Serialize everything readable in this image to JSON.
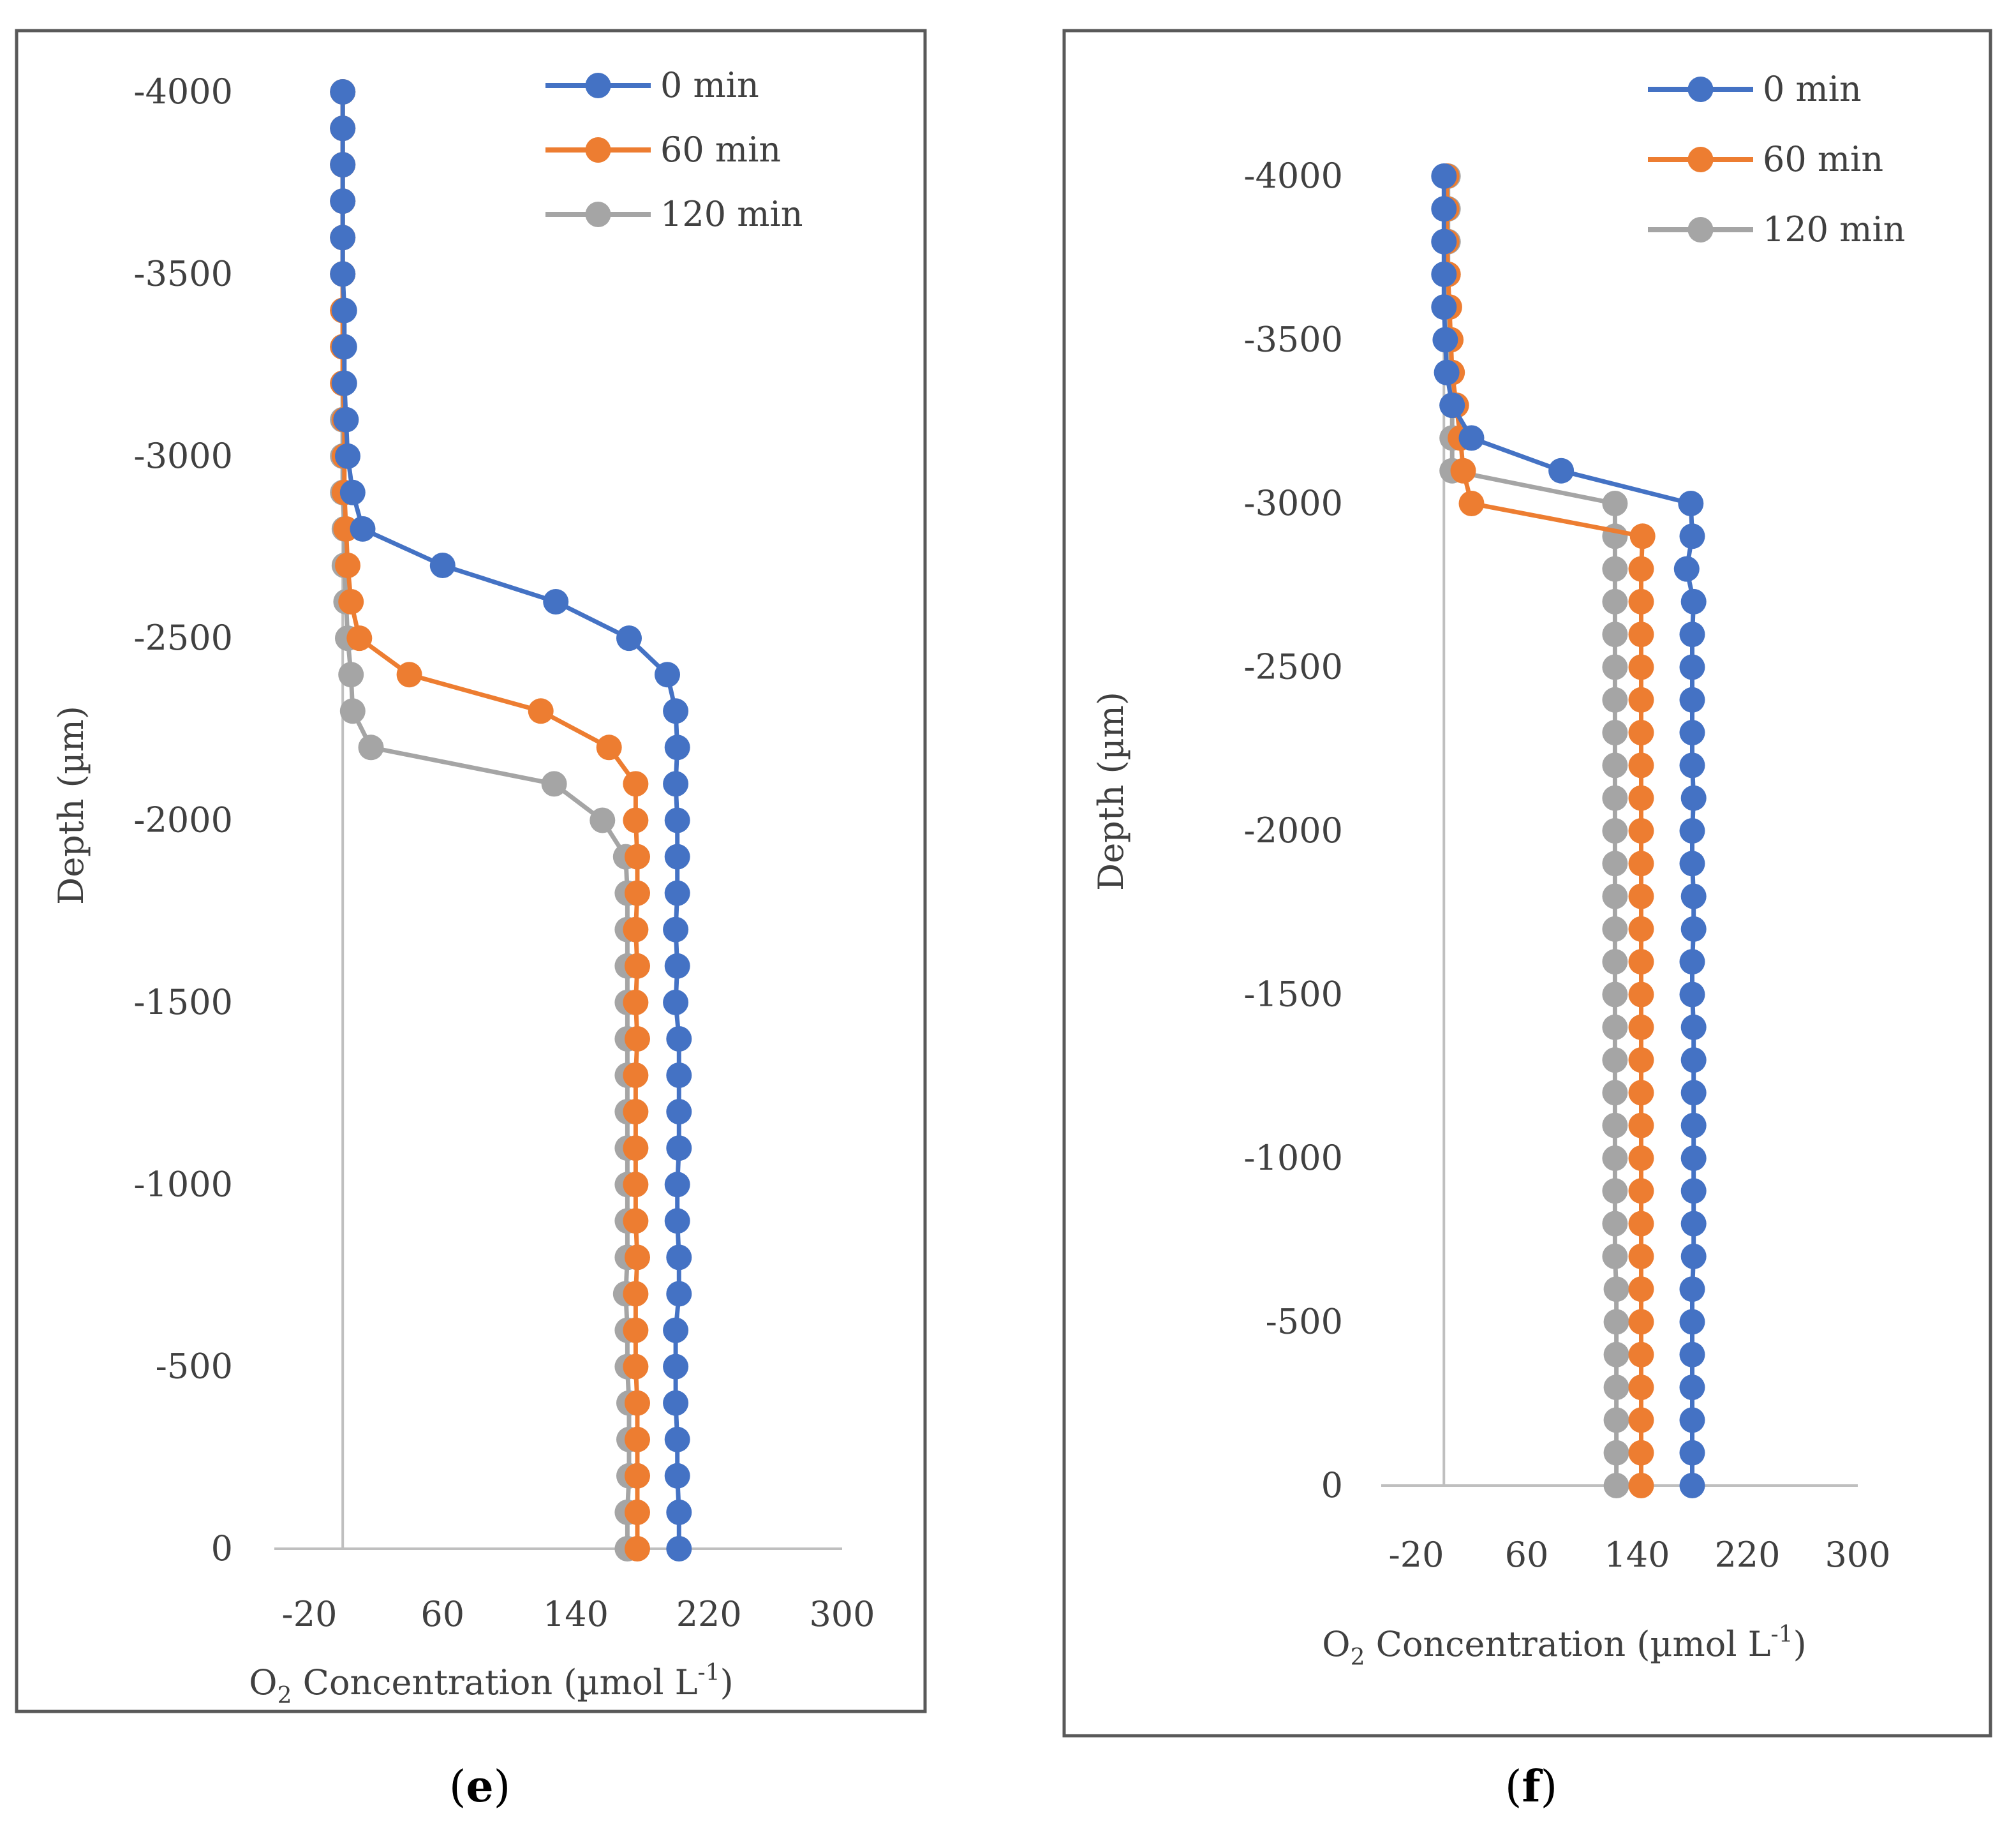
{
  "colors": {
    "s0": "#4472C4",
    "s60": "#ED7D31",
    "s120": "#A5A5A5",
    "axis": "#BFBFBF",
    "frame": "#595959",
    "text": "#404040"
  },
  "panels": [
    {
      "caption_open": "(",
      "caption_letter": "e",
      "caption_close": ")"
    },
    {
      "caption_open": "(",
      "caption_letter": "f",
      "caption_close": ")"
    }
  ],
  "chart_data": [
    {
      "type": "scatter",
      "mode": "lines+markers",
      "panel": "e",
      "title": "",
      "xlabel": "O2 Concentration (µmol L-1)",
      "xlabel_parts": {
        "o": "O",
        "sub": "2",
        "mid": " Concentration (µmol L",
        "sup": "-1",
        "end": ")"
      },
      "ylabel": "Depth (µm)",
      "xlim": [
        -20,
        300
      ],
      "xticks": [
        -20,
        60,
        140,
        220,
        300
      ],
      "ylim": [
        0,
        -4000
      ],
      "yticks": [
        -4000,
        -3500,
        -3000,
        -2500,
        -2000,
        -1500,
        -1000,
        -500,
        0
      ],
      "grid": false,
      "legend": "top-right",
      "series": [
        {
          "name": "0 min",
          "color": "#4472C4",
          "points": [
            [
              0,
              -4000
            ],
            [
              0,
              -3900
            ],
            [
              0,
              -3800
            ],
            [
              0,
              -3700
            ],
            [
              0,
              -3600
            ],
            [
              0,
              -3500
            ],
            [
              1,
              -3400
            ],
            [
              1,
              -3300
            ],
            [
              1,
              -3200
            ],
            [
              2,
              -3100
            ],
            [
              3,
              -3000
            ],
            [
              6,
              -2900
            ],
            [
              12,
              -2800
            ],
            [
              60,
              -2700
            ],
            [
              128,
              -2600
            ],
            [
              172,
              -2500
            ],
            [
              195,
              -2400
            ],
            [
              200,
              -2300
            ],
            [
              201,
              -2200
            ],
            [
              200,
              -2100
            ],
            [
              201,
              -2000
            ],
            [
              201,
              -1900
            ],
            [
              201,
              -1800
            ],
            [
              200,
              -1700
            ],
            [
              201,
              -1600
            ],
            [
              200,
              -1500
            ],
            [
              202,
              -1400
            ],
            [
              202,
              -1300
            ],
            [
              202,
              -1200
            ],
            [
              202,
              -1100
            ],
            [
              201,
              -1000
            ],
            [
              201,
              -900
            ],
            [
              202,
              -800
            ],
            [
              202,
              -700
            ],
            [
              200,
              -600
            ],
            [
              200,
              -500
            ],
            [
              200,
              -400
            ],
            [
              201,
              -300
            ],
            [
              201,
              -200
            ],
            [
              202,
              -100
            ],
            [
              202,
              0
            ]
          ]
        },
        {
          "name": "60 min",
          "color": "#ED7D31",
          "points": [
            [
              0,
              -4000
            ],
            [
              0,
              -3900
            ],
            [
              0,
              -3800
            ],
            [
              0,
              -3700
            ],
            [
              0,
              -3600
            ],
            [
              0,
              -3500
            ],
            [
              0,
              -3400
            ],
            [
              0,
              -3300
            ],
            [
              0,
              -3200
            ],
            [
              1,
              -3100
            ],
            [
              1,
              -3000
            ],
            [
              1,
              -2900
            ],
            [
              2,
              -2800
            ],
            [
              3,
              -2700
            ],
            [
              5,
              -2600
            ],
            [
              10,
              -2500
            ],
            [
              40,
              -2400
            ],
            [
              119,
              -2300
            ],
            [
              160,
              -2200
            ],
            [
              176,
              -2100
            ],
            [
              176,
              -2000
            ],
            [
              177,
              -1900
            ],
            [
              177,
              -1800
            ],
            [
              176,
              -1700
            ],
            [
              177,
              -1600
            ],
            [
              176,
              -1500
            ],
            [
              177,
              -1400
            ],
            [
              176,
              -1300
            ],
            [
              176,
              -1200
            ],
            [
              176,
              -1100
            ],
            [
              176,
              -1000
            ],
            [
              176,
              -900
            ],
            [
              177,
              -800
            ],
            [
              176,
              -700
            ],
            [
              176,
              -600
            ],
            [
              176,
              -500
            ],
            [
              177,
              -400
            ],
            [
              177,
              -300
            ],
            [
              177,
              -200
            ],
            [
              177,
              -100
            ],
            [
              177,
              0
            ]
          ]
        },
        {
          "name": "120 min",
          "color": "#A5A5A5",
          "points": [
            [
              0,
              -4000
            ],
            [
              0,
              -3900
            ],
            [
              0,
              -3800
            ],
            [
              0,
              -3700
            ],
            [
              0,
              -3600
            ],
            [
              0,
              -3500
            ],
            [
              0,
              -3400
            ],
            [
              0,
              -3300
            ],
            [
              0,
              -3200
            ],
            [
              0,
              -3100
            ],
            [
              0,
              -3000
            ],
            [
              0,
              -2900
            ],
            [
              1,
              -2800
            ],
            [
              1,
              -2700
            ],
            [
              2,
              -2600
            ],
            [
              3,
              -2500
            ],
            [
              5,
              -2400
            ],
            [
              6,
              -2300
            ],
            [
              17,
              -2200
            ],
            [
              127,
              -2100
            ],
            [
              156,
              -2000
            ],
            [
              170,
              -1900
            ],
            [
              171,
              -1800
            ],
            [
              171,
              -1700
            ],
            [
              171,
              -1600
            ],
            [
              171,
              -1500
            ],
            [
              171,
              -1400
            ],
            [
              171,
              -1300
            ],
            [
              171,
              -1200
            ],
            [
              171,
              -1100
            ],
            [
              171,
              -1000
            ],
            [
              171,
              -900
            ],
            [
              171,
              -800
            ],
            [
              170,
              -700
            ],
            [
              171,
              -600
            ],
            [
              171,
              -500
            ],
            [
              172,
              -400
            ],
            [
              172,
              -300
            ],
            [
              172,
              -200
            ],
            [
              171,
              -100
            ],
            [
              171,
              0
            ]
          ]
        }
      ]
    },
    {
      "type": "scatter",
      "mode": "lines+markers",
      "panel": "f",
      "title": "",
      "xlabel": "O2 Concentration (µmol L-1)",
      "xlabel_parts": {
        "o": "O",
        "sub": "2",
        "mid": " Concentration (µmol L",
        "sup": "-1",
        "end": ")"
      },
      "ylabel": "Depth (µm)",
      "xlim": [
        -20,
        300
      ],
      "xticks": [
        -20,
        60,
        140,
        220,
        300
      ],
      "ylim": [
        0,
        -4000
      ],
      "yticks": [
        -4000,
        -3500,
        -3000,
        -2500,
        -2000,
        -1500,
        -1000,
        -500,
        0
      ],
      "grid": false,
      "legend": "top-right",
      "series": [
        {
          "name": "0 min",
          "color": "#4472C4",
          "points": [
            [
              0,
              -4000
            ],
            [
              0,
              -3900
            ],
            [
              0,
              -3800
            ],
            [
              0,
              -3700
            ],
            [
              0,
              -3600
            ],
            [
              1,
              -3500
            ],
            [
              2,
              -3400
            ],
            [
              6,
              -3300
            ],
            [
              20,
              -3200
            ],
            [
              85,
              -3100
            ],
            [
              179,
              -3000
            ],
            [
              180,
              -2900
            ],
            [
              176,
              -2800
            ],
            [
              181,
              -2700
            ],
            [
              180,
              -2600
            ],
            [
              180,
              -2500
            ],
            [
              180,
              -2400
            ],
            [
              180,
              -2300
            ],
            [
              180,
              -2200
            ],
            [
              181,
              -2100
            ],
            [
              180,
              -2000
            ],
            [
              180,
              -1900
            ],
            [
              181,
              -1800
            ],
            [
              181,
              -1700
            ],
            [
              180,
              -1600
            ],
            [
              180,
              -1500
            ],
            [
              181,
              -1400
            ],
            [
              181,
              -1300
            ],
            [
              181,
              -1200
            ],
            [
              181,
              -1100
            ],
            [
              181,
              -1000
            ],
            [
              181,
              -900
            ],
            [
              181,
              -800
            ],
            [
              181,
              -700
            ],
            [
              180,
              -600
            ],
            [
              180,
              -500
            ],
            [
              180,
              -400
            ],
            [
              180,
              -300
            ],
            [
              180,
              -200
            ],
            [
              180,
              -100
            ],
            [
              180,
              0
            ]
          ]
        },
        {
          "name": "60 min",
          "color": "#ED7D31",
          "points": [
            [
              2,
              -4000
            ],
            [
              2,
              -3900
            ],
            [
              2,
              -3800
            ],
            [
              3,
              -3700
            ],
            [
              4,
              -3600
            ],
            [
              5,
              -3500
            ],
            [
              6,
              -3400
            ],
            [
              9,
              -3300
            ],
            [
              12,
              -3200
            ],
            [
              14,
              -3100
            ],
            [
              20,
              -3000
            ],
            [
              144,
              -2900
            ],
            [
              143,
              -2800
            ],
            [
              143,
              -2700
            ],
            [
              143,
              -2600
            ],
            [
              143,
              -2500
            ],
            [
              143,
              -2400
            ],
            [
              143,
              -2300
            ],
            [
              143,
              -2200
            ],
            [
              143,
              -2100
            ],
            [
              143,
              -2000
            ],
            [
              143,
              -1900
            ],
            [
              143,
              -1800
            ],
            [
              143,
              -1700
            ],
            [
              143,
              -1600
            ],
            [
              143,
              -1500
            ],
            [
              143,
              -1400
            ],
            [
              143,
              -1300
            ],
            [
              143,
              -1200
            ],
            [
              143,
              -1100
            ],
            [
              143,
              -1000
            ],
            [
              143,
              -900
            ],
            [
              143,
              -800
            ],
            [
              143,
              -700
            ],
            [
              143,
              -600
            ],
            [
              143,
              -500
            ],
            [
              143,
              -400
            ],
            [
              143,
              -300
            ],
            [
              143,
              -200
            ],
            [
              143,
              -100
            ],
            [
              143,
              0
            ]
          ]
        },
        {
          "name": "120 min",
          "color": "#A5A5A5",
          "points": [
            [
              3,
              -4000
            ],
            [
              3,
              -3900
            ],
            [
              3,
              -3800
            ],
            [
              3,
              -3700
            ],
            [
              3,
              -3600
            ],
            [
              3,
              -3500
            ],
            [
              3,
              -3400
            ],
            [
              6,
              -3300
            ],
            [
              6,
              -3200
            ],
            [
              6,
              -3100
            ],
            [
              124,
              -3000
            ],
            [
              124,
              -2900
            ],
            [
              124,
              -2800
            ],
            [
              124,
              -2700
            ],
            [
              124,
              -2600
            ],
            [
              124,
              -2500
            ],
            [
              124,
              -2400
            ],
            [
              124,
              -2300
            ],
            [
              124,
              -2200
            ],
            [
              124,
              -2100
            ],
            [
              124,
              -2000
            ],
            [
              124,
              -1900
            ],
            [
              124,
              -1800
            ],
            [
              124,
              -1700
            ],
            [
              124,
              -1600
            ],
            [
              124,
              -1500
            ],
            [
              124,
              -1400
            ],
            [
              124,
              -1300
            ],
            [
              124,
              -1200
            ],
            [
              124,
              -1100
            ],
            [
              124,
              -1000
            ],
            [
              124,
              -900
            ],
            [
              124,
              -800
            ],
            [
              124,
              -700
            ],
            [
              125,
              -600
            ],
            [
              125,
              -500
            ],
            [
              125,
              -400
            ],
            [
              125,
              -300
            ],
            [
              125,
              -200
            ],
            [
              125,
              -100
            ],
            [
              125,
              0
            ]
          ]
        }
      ]
    }
  ]
}
